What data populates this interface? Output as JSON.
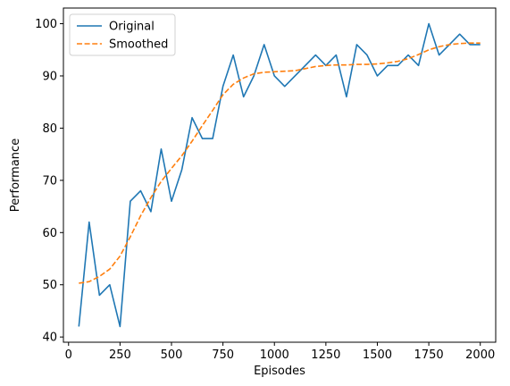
{
  "chart_data": {
    "type": "line",
    "title": "",
    "xlabel": "Episodes",
    "ylabel": "Performance",
    "xlim": [
      -25,
      2075
    ],
    "ylim": [
      39,
      103
    ],
    "xticks": [
      0,
      250,
      500,
      750,
      1000,
      1250,
      1500,
      1750,
      2000
    ],
    "yticks": [
      40,
      50,
      60,
      70,
      80,
      90,
      100
    ],
    "grid": false,
    "legend_position": "upper left",
    "series": [
      {
        "name": "Original",
        "color": "#1f77b4",
        "style": "solid",
        "x": [
          50,
          100,
          150,
          200,
          250,
          300,
          350,
          400,
          450,
          500,
          550,
          600,
          650,
          700,
          750,
          800,
          850,
          900,
          950,
          1000,
          1050,
          1100,
          1150,
          1200,
          1250,
          1300,
          1350,
          1400,
          1450,
          1500,
          1550,
          1600,
          1650,
          1700,
          1750,
          1800,
          1850,
          1900,
          1950,
          2000
        ],
        "y": [
          42,
          62,
          48,
          50,
          42,
          66,
          68,
          64,
          76,
          66,
          72,
          82,
          78,
          78,
          88,
          94,
          86,
          90,
          96,
          90,
          88,
          90,
          92,
          94,
          92,
          94,
          86,
          96,
          94,
          90,
          92,
          92,
          94,
          92,
          100,
          94,
          96,
          98,
          96,
          96
        ]
      },
      {
        "name": "Smoothed",
        "color": "#ff7f0e",
        "style": "dashed",
        "x": [
          50,
          100,
          150,
          200,
          250,
          300,
          350,
          400,
          450,
          500,
          550,
          600,
          650,
          700,
          750,
          800,
          850,
          900,
          950,
          1000,
          1050,
          1100,
          1150,
          1200,
          1250,
          1300,
          1350,
          1400,
          1450,
          1500,
          1550,
          1600,
          1650,
          1700,
          1750,
          1800,
          1850,
          1900,
          1950,
          2000
        ],
        "y": [
          50.3,
          50.6,
          51.6,
          53.0,
          55.5,
          59.2,
          63.2,
          66.7,
          69.8,
          72.3,
          74.7,
          77.5,
          80.5,
          83.4,
          86.4,
          88.4,
          89.6,
          90.4,
          90.7,
          90.8,
          90.9,
          91.0,
          91.4,
          91.8,
          92.0,
          92.1,
          92.1,
          92.2,
          92.2,
          92.3,
          92.5,
          92.8,
          93.3,
          94.1,
          95.0,
          95.6,
          96.0,
          96.2,
          96.3,
          96.3
        ]
      }
    ]
  }
}
